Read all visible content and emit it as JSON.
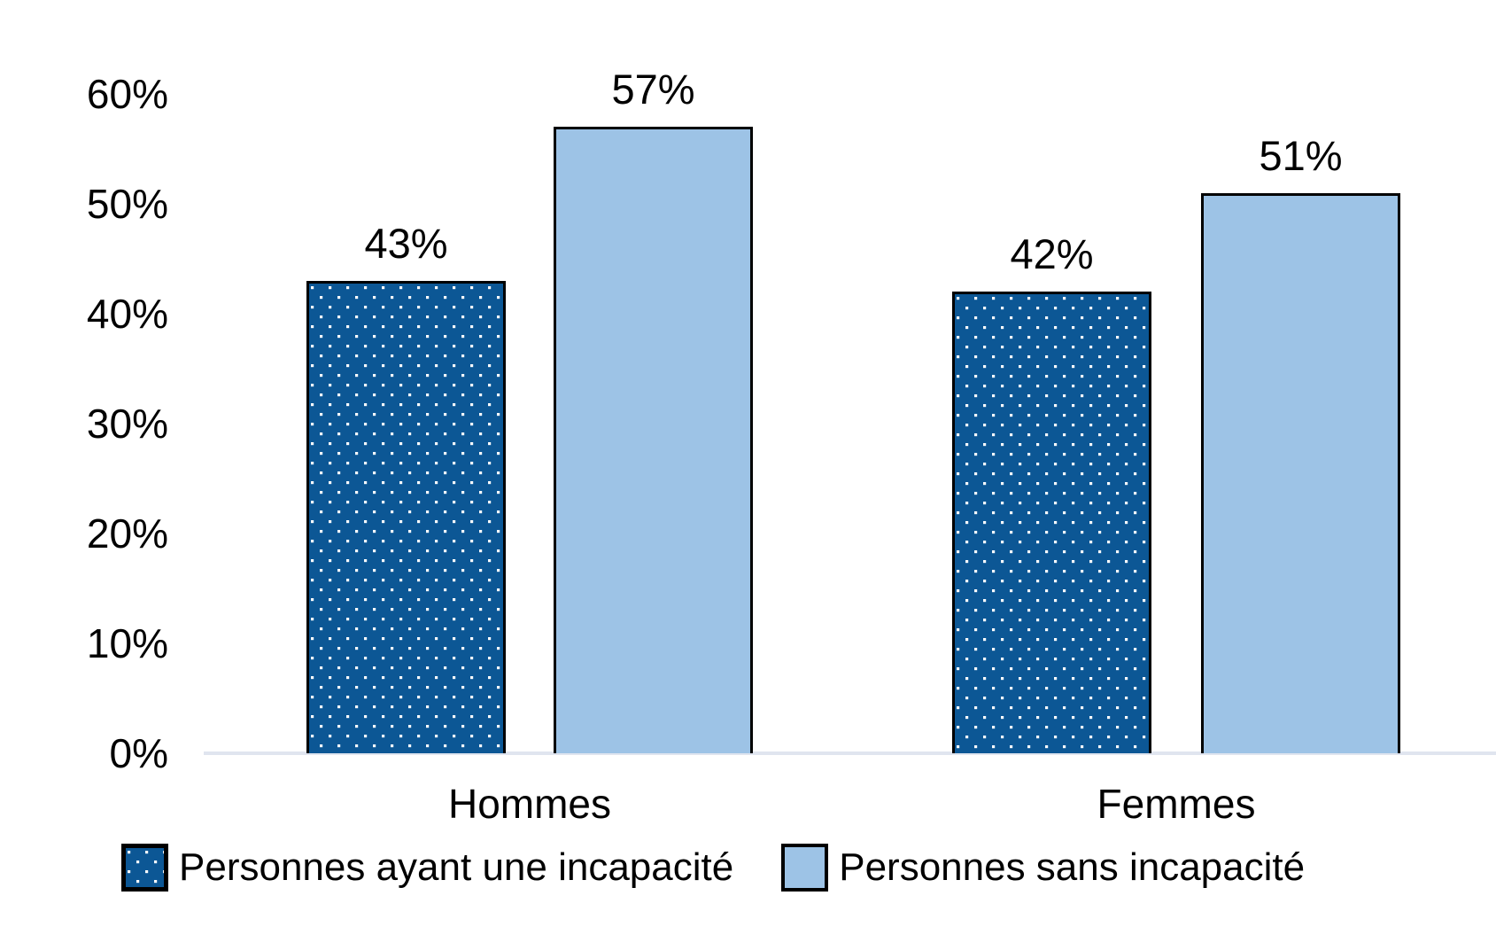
{
  "chart_data": {
    "type": "bar",
    "title": "",
    "xlabel": "",
    "ylabel": "",
    "categories": [
      "Hommes",
      "Femmes"
    ],
    "series": [
      {
        "name": "Personnes ayant une incapacité",
        "fill": "dotted-pattern",
        "color": "#0C5795",
        "dot_color": "#FFFFFF",
        "values": [
          43,
          42
        ],
        "labels": [
          "43%",
          "42%"
        ]
      },
      {
        "name": "Personnes sans incapacité",
        "fill": "solid",
        "color": "#9DC3E6",
        "values": [
          57,
          51
        ],
        "labels": [
          "57%",
          "51%"
        ]
      }
    ],
    "y_axis": {
      "min": 0,
      "max": 60,
      "step": 10,
      "tick_labels": [
        "0%",
        "10%",
        "20%",
        "30%",
        "40%",
        "50%",
        "60%"
      ]
    },
    "grid": false,
    "legend_position": "bottom",
    "bar_border_color": "#000000",
    "axis_line_color": "#E0E5EF",
    "background": "#FFFFFF"
  }
}
